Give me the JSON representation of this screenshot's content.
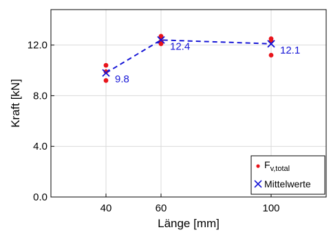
{
  "colors": {
    "points": "#e8141b",
    "mean": "#1515d6",
    "grid": "#d9d9d9",
    "axis": "#000000"
  },
  "chart_data": {
    "type": "scatter",
    "xlabel": "Länge [mm]",
    "ylabel": "Kraft [kN]",
    "xlim": [
      20,
      120
    ],
    "ylim": [
      0,
      14.8
    ],
    "xticks": [
      40,
      60,
      100
    ],
    "xtick_labels": [
      "40",
      "60",
      "100"
    ],
    "yticks": [
      0,
      4,
      8,
      12
    ],
    "ytick_labels": [
      "0.0",
      "4.0",
      "8.0",
      "12.0"
    ],
    "grid": true,
    "legend_position": "bottom-right",
    "series": [
      {
        "name": "F_v,total",
        "legend_main": "F",
        "legend_sub": "v,total",
        "marker": "dot",
        "points": [
          {
            "x": 40,
            "y": 10.4
          },
          {
            "x": 40,
            "y": 9.9
          },
          {
            "x": 40,
            "y": 9.2
          },
          {
            "x": 60,
            "y": 12.7
          },
          {
            "x": 60,
            "y": 12.6
          },
          {
            "x": 60,
            "y": 12.3
          },
          {
            "x": 60,
            "y": 12.1
          },
          {
            "x": 100,
            "y": 12.5
          },
          {
            "x": 100,
            "y": 12.3
          },
          {
            "x": 100,
            "y": 11.2
          }
        ]
      },
      {
        "name": "Mittelwerte",
        "marker": "x",
        "line": "dashed",
        "points": [
          {
            "x": 40,
            "y": 9.8,
            "label": "9.8"
          },
          {
            "x": 60,
            "y": 12.4,
            "label": "12.4"
          },
          {
            "x": 100,
            "y": 12.1,
            "label": "12.1"
          }
        ]
      }
    ]
  }
}
